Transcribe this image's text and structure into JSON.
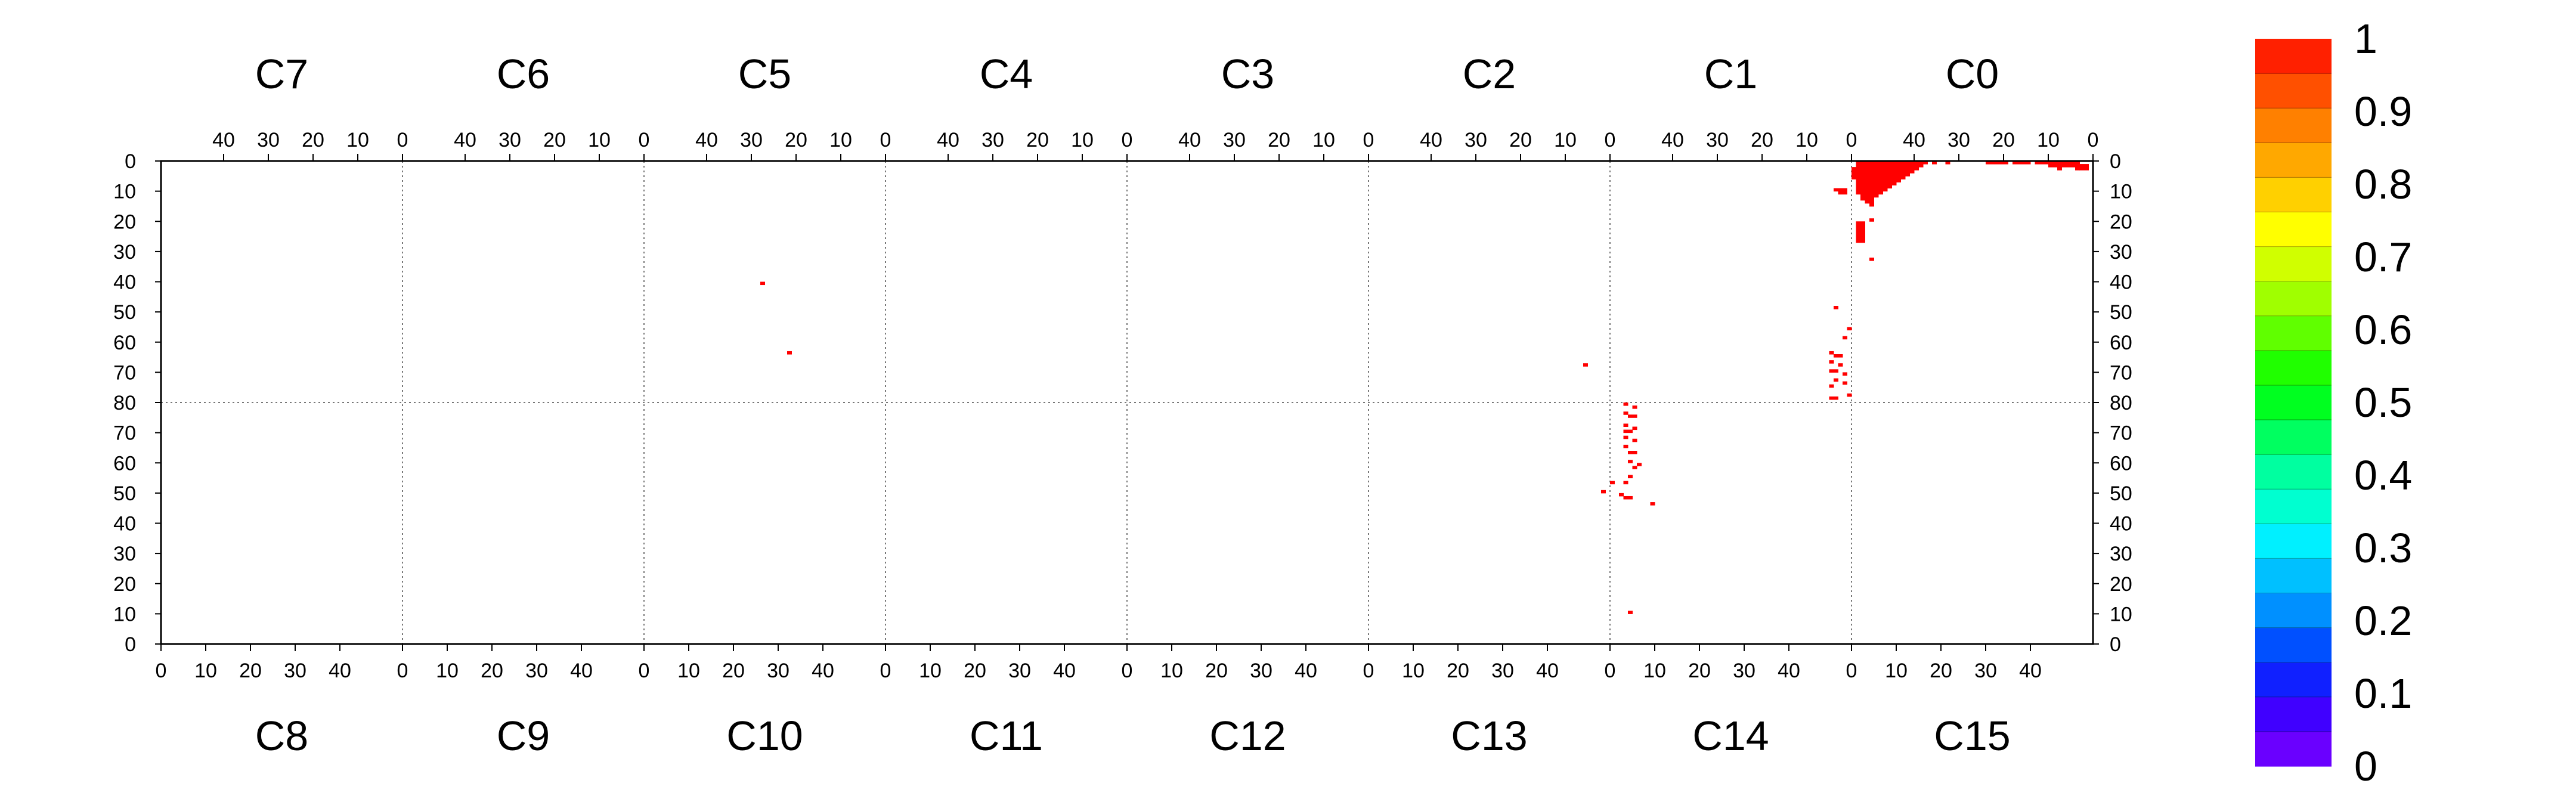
{
  "chart_data": {
    "type": "heatmap",
    "title": "",
    "top_sections": [
      "C7",
      "C6",
      "C5",
      "C4",
      "C3",
      "C2",
      "C1",
      "C0"
    ],
    "bottom_sections": [
      "C8",
      "C9",
      "C10",
      "C11",
      "C12",
      "C13",
      "C14",
      "C15"
    ],
    "top_x_ticks": [
      "40",
      "30",
      "20",
      "10",
      "0"
    ],
    "bottom_x_ticks": [
      "0",
      "10",
      "20",
      "30",
      "40"
    ],
    "y_ticks_top_half": [
      "0",
      "10",
      "20",
      "30",
      "40",
      "50",
      "60",
      "70",
      "80"
    ],
    "y_ticks_bottom_half": [
      "70",
      "60",
      "50",
      "40",
      "30",
      "20",
      "10",
      "0"
    ],
    "x_range_per_section": [
      0,
      54
    ],
    "y_range_per_half": [
      0,
      80
    ],
    "grid": "dotted section dividers",
    "colorbar": {
      "labels": [
        "1",
        "0.9",
        "0.8",
        "0.7",
        "0.6",
        "0.5",
        "0.4",
        "0.3",
        "0.2",
        "0.1",
        "0"
      ],
      "range": [
        0,
        1
      ],
      "colors": [
        "#6a00ff",
        "#4000ff",
        "#1020ff",
        "#0050ff",
        "#0090ff",
        "#00c0ff",
        "#00f0ff",
        "#00ffd0",
        "#00ffa0",
        "#00ff60",
        "#00ff20",
        "#20ff00",
        "#60ff00",
        "#a0ff00",
        "#d0ff00",
        "#ffff00",
        "#ffd000",
        "#ffa800",
        "#ff8000",
        "#ff5000",
        "#ff2000"
      ]
    },
    "cells": [
      {
        "half": "top",
        "section": "C1",
        "x": 1,
        "y": 9,
        "w": 3,
        "h": 1,
        "value": 1
      },
      {
        "half": "top",
        "section": "C1",
        "x": 1,
        "y": 10,
        "w": 2,
        "h": 1,
        "value": 1
      },
      {
        "half": "top",
        "section": "C5",
        "x": 27,
        "y": 40,
        "w": 1,
        "h": 1,
        "value": 1
      },
      {
        "half": "top",
        "section": "C5",
        "x": 21,
        "y": 63,
        "w": 1,
        "h": 1,
        "value": 1
      },
      {
        "half": "top",
        "section": "C1",
        "x": 3,
        "y": 48,
        "w": 1,
        "h": 1,
        "value": 1
      },
      {
        "half": "top",
        "section": "C1",
        "x": 0,
        "y": 55,
        "w": 1,
        "h": 1,
        "value": 1
      },
      {
        "half": "top",
        "section": "C1",
        "x": 1,
        "y": 58,
        "w": 1,
        "h": 1,
        "value": 1
      },
      {
        "half": "top",
        "section": "C1",
        "x": 4,
        "y": 63,
        "w": 1,
        "h": 1,
        "value": 1
      },
      {
        "half": "top",
        "section": "C1",
        "x": 2,
        "y": 64,
        "w": 2,
        "h": 1,
        "value": 1
      },
      {
        "half": "top",
        "section": "C1",
        "x": 4,
        "y": 66,
        "w": 1,
        "h": 1,
        "value": 1
      },
      {
        "half": "top",
        "section": "C1",
        "x": 2,
        "y": 67,
        "w": 1,
        "h": 1,
        "value": 1
      },
      {
        "half": "top",
        "section": "C2",
        "x": 5,
        "y": 67,
        "w": 1,
        "h": 1,
        "value": 1
      },
      {
        "half": "top",
        "section": "C1",
        "x": 3,
        "y": 69,
        "w": 2,
        "h": 1,
        "value": 1
      },
      {
        "half": "top",
        "section": "C1",
        "x": 1,
        "y": 70,
        "w": 1,
        "h": 1,
        "value": 1
      },
      {
        "half": "top",
        "section": "C1",
        "x": 3,
        "y": 72,
        "w": 1,
        "h": 1,
        "value": 1
      },
      {
        "half": "top",
        "section": "C1",
        "x": 1,
        "y": 73,
        "w": 1,
        "h": 1,
        "value": 1
      },
      {
        "half": "top",
        "section": "C1",
        "x": 4,
        "y": 74,
        "w": 1,
        "h": 1,
        "value": 1
      },
      {
        "half": "top",
        "section": "C1",
        "x": 0,
        "y": 77,
        "w": 1,
        "h": 1,
        "value": 1
      },
      {
        "half": "top",
        "section": "C1",
        "x": 3,
        "y": 78,
        "w": 2,
        "h": 1,
        "value": 1
      },
      {
        "half": "bottom",
        "section": "C14",
        "x": 3,
        "y": 79,
        "w": 1,
        "h": 1,
        "value": 1
      },
      {
        "half": "bottom",
        "section": "C14",
        "x": 5,
        "y": 78,
        "w": 1,
        "h": 1,
        "value": 1
      },
      {
        "half": "bottom",
        "section": "C14",
        "x": 3,
        "y": 76,
        "w": 1,
        "h": 1,
        "value": 1
      },
      {
        "half": "bottom",
        "section": "C14",
        "x": 4,
        "y": 75,
        "w": 2,
        "h": 1,
        "value": 1
      },
      {
        "half": "bottom",
        "section": "C14",
        "x": 3,
        "y": 72,
        "w": 1,
        "h": 1,
        "value": 1
      },
      {
        "half": "bottom",
        "section": "C14",
        "x": 5,
        "y": 71,
        "w": 1,
        "h": 1,
        "value": 1
      },
      {
        "half": "bottom",
        "section": "C14",
        "x": 3,
        "y": 70,
        "w": 2,
        "h": 1,
        "value": 1
      },
      {
        "half": "bottom",
        "section": "C14",
        "x": 3,
        "y": 68,
        "w": 1,
        "h": 1,
        "value": 1
      },
      {
        "half": "bottom",
        "section": "C14",
        "x": 5,
        "y": 67,
        "w": 1,
        "h": 1,
        "value": 1
      },
      {
        "half": "bottom",
        "section": "C14",
        "x": 3,
        "y": 65,
        "w": 1,
        "h": 1,
        "value": 1
      },
      {
        "half": "bottom",
        "section": "C14",
        "x": 4,
        "y": 63,
        "w": 2,
        "h": 1,
        "value": 1
      },
      {
        "half": "bottom",
        "section": "C14",
        "x": 4,
        "y": 60,
        "w": 1,
        "h": 1,
        "value": 1
      },
      {
        "half": "bottom",
        "section": "C14",
        "x": 6,
        "y": 59,
        "w": 1,
        "h": 1,
        "value": 1
      },
      {
        "half": "bottom",
        "section": "C14",
        "x": 5,
        "y": 58,
        "w": 1,
        "h": 1,
        "value": 1
      },
      {
        "half": "bottom",
        "section": "C14",
        "x": 4,
        "y": 55,
        "w": 1,
        "h": 1,
        "value": 1
      },
      {
        "half": "bottom",
        "section": "C14",
        "x": 3,
        "y": 53,
        "w": 1,
        "h": 1,
        "value": 1
      },
      {
        "half": "bottom",
        "section": "C14",
        "x": 0,
        "y": 53,
        "w": 1,
        "h": 1,
        "value": 1
      },
      {
        "half": "bottom",
        "section": "C13",
        "x": 52,
        "y": 50,
        "w": 1,
        "h": 1,
        "value": 1
      },
      {
        "half": "bottom",
        "section": "C14",
        "x": 2,
        "y": 49,
        "w": 1,
        "h": 1,
        "value": 1
      },
      {
        "half": "bottom",
        "section": "C14",
        "x": 3,
        "y": 48,
        "w": 2,
        "h": 1,
        "value": 1
      },
      {
        "half": "bottom",
        "section": "C14",
        "x": 9,
        "y": 46,
        "w": 1,
        "h": 1,
        "value": 1
      },
      {
        "half": "bottom",
        "section": "C14",
        "x": 4,
        "y": 10,
        "w": 1,
        "h": 1,
        "value": 1
      },
      {
        "half": "top",
        "section": "C0",
        "x": 53,
        "y": 2,
        "w": 1,
        "h": 4,
        "value": 1
      },
      {
        "half": "top",
        "section": "C0",
        "x": 52,
        "y": 0,
        "w": 1,
        "h": 11,
        "value": 1
      },
      {
        "half": "top",
        "section": "C0",
        "x": 51,
        "y": 0,
        "w": 1,
        "h": 13,
        "value": 1
      },
      {
        "half": "top",
        "section": "C0",
        "x": 50,
        "y": 0,
        "w": 1,
        "h": 14,
        "value": 1
      },
      {
        "half": "top",
        "section": "C0",
        "x": 49,
        "y": 0,
        "w": 1,
        "h": 15,
        "value": 1
      },
      {
        "half": "top",
        "section": "C0",
        "x": 48,
        "y": 0,
        "w": 1,
        "h": 12,
        "value": 1
      },
      {
        "half": "top",
        "section": "C0",
        "x": 47,
        "y": 0,
        "w": 1,
        "h": 11,
        "value": 1
      },
      {
        "half": "top",
        "section": "C0",
        "x": 46,
        "y": 0,
        "w": 1,
        "h": 10,
        "value": 1
      },
      {
        "half": "top",
        "section": "C0",
        "x": 45,
        "y": 0,
        "w": 1,
        "h": 9,
        "value": 1
      },
      {
        "half": "top",
        "section": "C0",
        "x": 44,
        "y": 0,
        "w": 1,
        "h": 8,
        "value": 1
      },
      {
        "half": "top",
        "section": "C0",
        "x": 43,
        "y": 0,
        "w": 1,
        "h": 7,
        "value": 1
      },
      {
        "half": "top",
        "section": "C0",
        "x": 42,
        "y": 0,
        "w": 1,
        "h": 6,
        "value": 1
      },
      {
        "half": "top",
        "section": "C0",
        "x": 41,
        "y": 0,
        "w": 1,
        "h": 5,
        "value": 1
      },
      {
        "half": "top",
        "section": "C0",
        "x": 40,
        "y": 0,
        "w": 1,
        "h": 4,
        "value": 1
      },
      {
        "half": "top",
        "section": "C0",
        "x": 39,
        "y": 0,
        "w": 1,
        "h": 3,
        "value": 1
      },
      {
        "half": "top",
        "section": "C0",
        "x": 38,
        "y": 0,
        "w": 1,
        "h": 2,
        "value": 1
      },
      {
        "half": "top",
        "section": "C0",
        "x": 37,
        "y": 0,
        "w": 1,
        "h": 1,
        "value": 1
      },
      {
        "half": "top",
        "section": "C0",
        "x": 35,
        "y": 0,
        "w": 1,
        "h": 1,
        "value": 1
      },
      {
        "half": "top",
        "section": "C0",
        "x": 32,
        "y": 0,
        "w": 1,
        "h": 1,
        "value": 1
      },
      {
        "half": "top",
        "section": "C0",
        "x": 51,
        "y": 20,
        "w": 2,
        "h": 7,
        "value": 1
      },
      {
        "half": "top",
        "section": "C0",
        "x": 49,
        "y": 19,
        "w": 1,
        "h": 1,
        "value": 1
      },
      {
        "half": "top",
        "section": "C0",
        "x": 49,
        "y": 32,
        "w": 1,
        "h": 1,
        "value": 1
      },
      {
        "half": "top",
        "section": "C0",
        "x": 22,
        "y": 0,
        "w": 2,
        "h": 1,
        "value": 1
      },
      {
        "half": "top",
        "section": "C0",
        "x": 19,
        "y": 0,
        "w": 3,
        "h": 1,
        "value": 1
      },
      {
        "half": "top",
        "section": "C0",
        "x": 14,
        "y": 0,
        "w": 4,
        "h": 1,
        "value": 1
      },
      {
        "half": "top",
        "section": "C0",
        "x": 10,
        "y": 0,
        "w": 3,
        "h": 1,
        "value": 1
      },
      {
        "half": "top",
        "section": "C0",
        "x": 8,
        "y": 0,
        "w": 2,
        "h": 2,
        "value": 1
      },
      {
        "half": "top",
        "section": "C0",
        "x": 7,
        "y": 0,
        "w": 1,
        "h": 3,
        "value": 1
      },
      {
        "half": "top",
        "section": "C0",
        "x": 4,
        "y": 0,
        "w": 3,
        "h": 2,
        "value": 1
      },
      {
        "half": "top",
        "section": "C0",
        "x": 3,
        "y": 0,
        "w": 1,
        "h": 3,
        "value": 1
      },
      {
        "half": "top",
        "section": "C0",
        "x": 1,
        "y": 1,
        "w": 2,
        "h": 2,
        "value": 1
      }
    ]
  }
}
